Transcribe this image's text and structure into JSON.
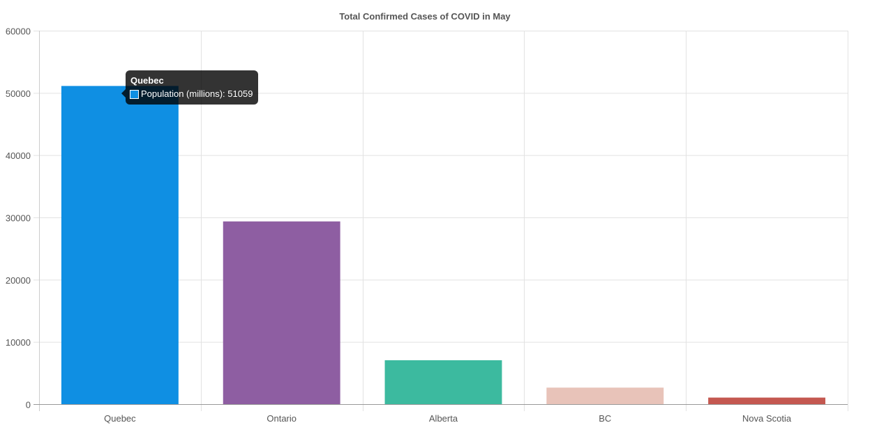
{
  "chart_data": {
    "type": "bar",
    "title": "Total Confirmed Cases of COVID in May",
    "xlabel": "",
    "ylabel": "",
    "categories": [
      "Quebec",
      "Ontario",
      "Alberta",
      "BC",
      "Nova Scotia"
    ],
    "series": [
      {
        "name": "Population (millions)",
        "values": [
          51059,
          29300,
          7000,
          2600,
          1000
        ],
        "colors": [
          "#0f8fe3",
          "#8e5ea2",
          "#3cba9f",
          "#e8c3b9",
          "#c45850"
        ]
      }
    ],
    "ylim": [
      0,
      60000
    ],
    "yticks": [
      0,
      10000,
      20000,
      30000,
      40000,
      50000,
      60000
    ],
    "grid": true,
    "legend": "none"
  },
  "tooltip": {
    "title": "Quebec",
    "label": "Population (millions): 51059",
    "swatch_color": "#0f8fe3"
  }
}
